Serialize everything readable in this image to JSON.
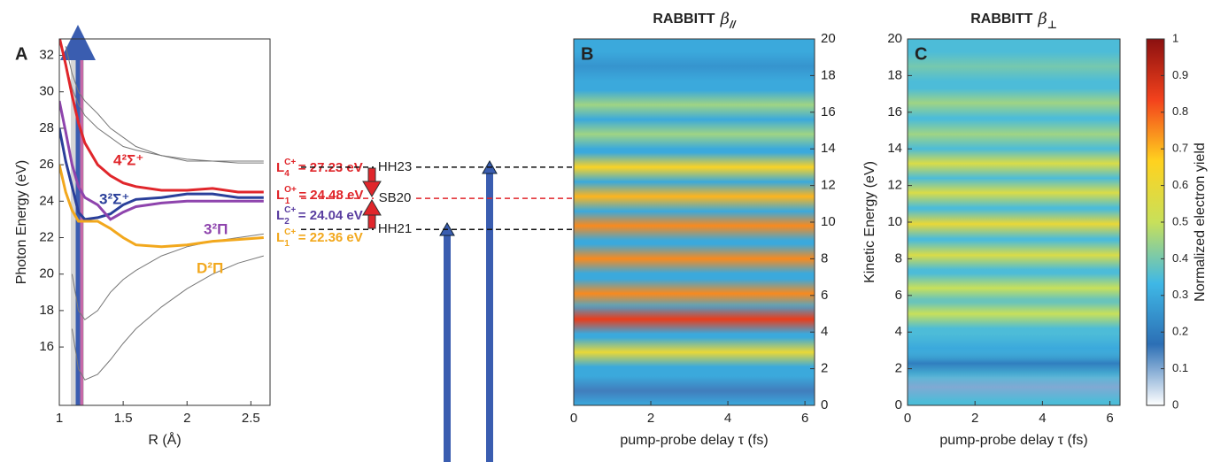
{
  "chart_data": [
    {
      "type": "line",
      "panel": "A",
      "xlabel": "R (Å)",
      "ylabel": "Photon Energy (eV)",
      "xlim": [
        1,
        2.65
      ],
      "ylim": [
        12.8,
        32.9
      ],
      "xticks": [
        1,
        1.5,
        2,
        2.5
      ],
      "yticks": [
        16,
        18,
        20,
        22,
        24,
        26,
        28,
        30,
        32
      ],
      "x": [
        1.0,
        1.05,
        1.1,
        1.15,
        1.2,
        1.3,
        1.4,
        1.5,
        1.6,
        1.8,
        2.0,
        2.2,
        2.4,
        2.6
      ],
      "series": [
        {
          "color": "#777777",
          "values": [
            33,
            31.5,
            30.2,
            29.3,
            28.7,
            28.0,
            27.5,
            27.0,
            26.8,
            26.5,
            26.2,
            26.2,
            26.1,
            26.1
          ]
        },
        {
          "color": "#777777",
          "values": [
            null,
            null,
            17,
            14.8,
            14.2,
            14.5,
            15.3,
            16.2,
            17.0,
            18.2,
            19.2,
            20.0,
            20.6,
            21.0
          ]
        },
        {
          "color": "#777777",
          "values": [
            null,
            null,
            20,
            18,
            17.5,
            18,
            19,
            19.7,
            20.2,
            21,
            21.5,
            21.8,
            22,
            22.2
          ]
        },
        {
          "color": "#777777",
          "values": [
            null,
            32.5,
            31,
            30,
            29.5,
            28.8,
            28,
            27.5,
            27,
            26.5,
            26.3,
            26.2,
            26.2,
            26.2
          ]
        },
        {
          "name": "4²Σ⁺",
          "color": "#e0262b",
          "values": [
            33,
            31.5,
            29.8,
            28.3,
            27.2,
            26.0,
            25.4,
            25.0,
            24.8,
            24.6,
            24.6,
            24.7,
            24.5,
            24.5
          ]
        },
        {
          "name": "3²Σ⁺",
          "color": "#2a3f9a",
          "values": [
            28.0,
            26.2,
            24.8,
            23.4,
            23.0,
            23.1,
            23.3,
            23.8,
            24.1,
            24.2,
            24.4,
            24.4,
            24.2,
            24.2
          ]
        },
        {
          "name": "3²Π",
          "color": "#8e44ad",
          "values": [
            29.5,
            27.8,
            26.0,
            24.8,
            24.2,
            23.8,
            23.0,
            23.4,
            23.7,
            23.9,
            24.0,
            24.0,
            24.0,
            24.0
          ]
        },
        {
          "name": "D²Π",
          "color": "#f2a81d",
          "values": [
            26.0,
            24.5,
            23.5,
            22.9,
            22.9,
            22.9,
            22.5,
            22.0,
            21.6,
            21.5,
            21.6,
            21.8,
            21.9,
            22.0
          ]
        }
      ],
      "levels": {
        "names": [
          "L",
          "L",
          "L",
          "L"
        ],
        "subscripts": [
          "4",
          "1",
          "2",
          "1"
        ],
        "superscripts": [
          "C+",
          "O+",
          "C+",
          "C+"
        ],
        "values": [
          27.23,
          24.48,
          24.04,
          22.36
        ],
        "value_labels": [
          "= 27.23 eV",
          "= 24.48 eV",
          "= 24.04 eV",
          "= 22.36 eV"
        ],
        "colors": [
          "#e0262b",
          "#e0262b",
          "#5a3ea0",
          "#f2a81d"
        ]
      }
    },
    {
      "type": "heatmap",
      "panel": "B",
      "title": "RABBITT",
      "title_symbol": "β",
      "title_subscript": "//",
      "xlabel": "pump-probe delay τ (fs)",
      "xlim": [
        0,
        6.25
      ],
      "ylim": [
        0,
        20
      ],
      "xticks": [
        0,
        2,
        4,
        6
      ],
      "yticks": [
        0,
        2,
        4,
        6,
        8,
        10,
        12,
        14,
        16,
        18,
        20
      ],
      "background": 0.3,
      "bands": {
        "y": [
          0.8,
          2.9,
          4.7,
          6.1,
          8.0,
          9.8,
          11.4,
          13.0,
          14.8,
          16.4,
          18.5
        ],
        "z": [
          0.15,
          0.6,
          0.85,
          0.75,
          0.75,
          0.75,
          0.7,
          0.65,
          0.45,
          0.45,
          0.25
        ]
      },
      "annotations": [
        {
          "text": "HH23",
          "y": 13,
          "color": "#111111"
        },
        {
          "text": "SB20",
          "y": 11.3,
          "color": "#e0262b"
        },
        {
          "text": "HH21",
          "y": 9.6,
          "color": "#111111"
        }
      ]
    },
    {
      "type": "heatmap",
      "panel": "C",
      "title": "RABBITT",
      "title_symbol": "β",
      "title_subscript": "⊥",
      "xlabel": "pump-probe delay τ (fs)",
      "ylabel": "Kinetic Energy (eV)",
      "xlim": [
        0,
        6.3
      ],
      "ylim": [
        0,
        20
      ],
      "xticks": [
        0,
        2,
        4,
        6
      ],
      "yticks": [
        0,
        2,
        4,
        6,
        8,
        10,
        12,
        14,
        16,
        18,
        20
      ],
      "background": 0.35,
      "bands": {
        "y": [
          1.0,
          2.3,
          3.1,
          5.0,
          6.4,
          8.2,
          9.9,
          11.6,
          13.2,
          14.8,
          16.5,
          18.5
        ],
        "z": [
          0.1,
          0.2,
          0.3,
          0.5,
          0.5,
          0.55,
          0.6,
          0.55,
          0.55,
          0.45,
          0.45,
          0.4
        ]
      },
      "colorbar": {
        "label": "Normalized electron yield",
        "clim": [
          0,
          1
        ],
        "ticks": [
          0,
          0.1,
          0.2,
          0.3,
          0.4,
          0.5,
          0.6,
          0.7,
          0.8,
          0.9,
          1
        ],
        "colormap": [
          "#ffffff",
          "#2c6fb5",
          "#3fb8e6",
          "#c8e05a",
          "#ffd21f",
          "#f3421c",
          "#8b1010"
        ]
      }
    }
  ]
}
